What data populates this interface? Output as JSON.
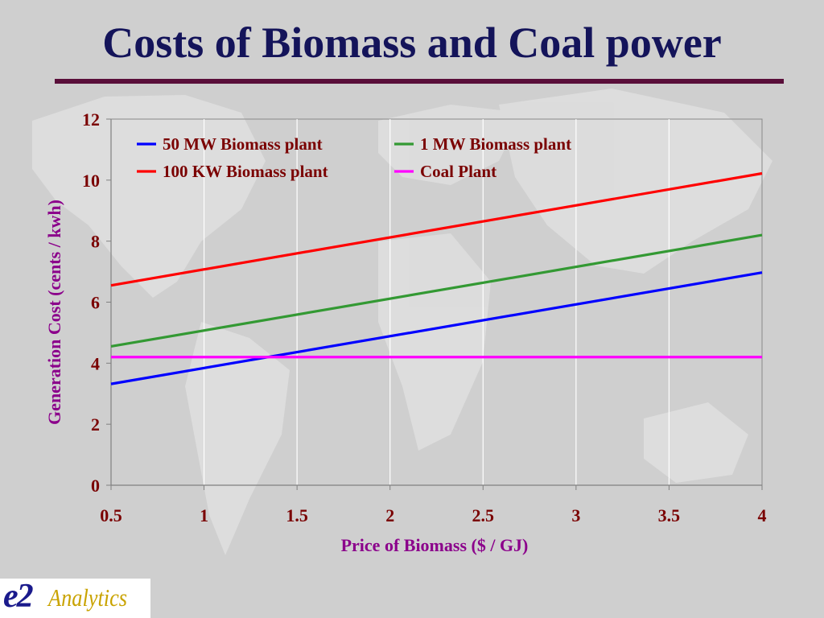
{
  "title": "Costs of Biomass and Coal power",
  "logo": {
    "mark": "e2",
    "word": "Analytics"
  },
  "colors": {
    "title": "#14145a",
    "rule": "#5a0f3a",
    "axis_text": "#7a0000",
    "axis_label": "#8b008b"
  },
  "chart_data": {
    "type": "line",
    "xlabel": "Price of Biomass ($ / GJ)",
    "ylabel": "Generation Cost (cents / kwh)",
    "xlim": [
      0.5,
      4
    ],
    "ylim": [
      0,
      12
    ],
    "x_ticks": [
      "0.5",
      "1",
      "1.5",
      "2",
      "2.5",
      "3",
      "3.5",
      "4"
    ],
    "y_ticks": [
      "0",
      "2",
      "4",
      "6",
      "8",
      "10",
      "12"
    ],
    "grid": "vertical",
    "legend": "top-left, inside plot",
    "series": [
      {
        "name": "50 MW Biomass plant",
        "color": "#0000ff",
        "x": [
          0.5,
          4
        ],
        "y": [
          3.32,
          6.97
        ]
      },
      {
        "name": "1 MW Biomass plant",
        "color": "#339933",
        "x": [
          0.5,
          4
        ],
        "y": [
          4.55,
          8.2
        ]
      },
      {
        "name": "100 KW Biomass plant",
        "color": "#ff0000",
        "x": [
          0.5,
          4
        ],
        "y": [
          6.55,
          10.22
        ]
      },
      {
        "name": "Coal Plant",
        "color": "#ff00ff",
        "x": [
          0.5,
          4
        ],
        "y": [
          4.2,
          4.2
        ]
      }
    ]
  }
}
